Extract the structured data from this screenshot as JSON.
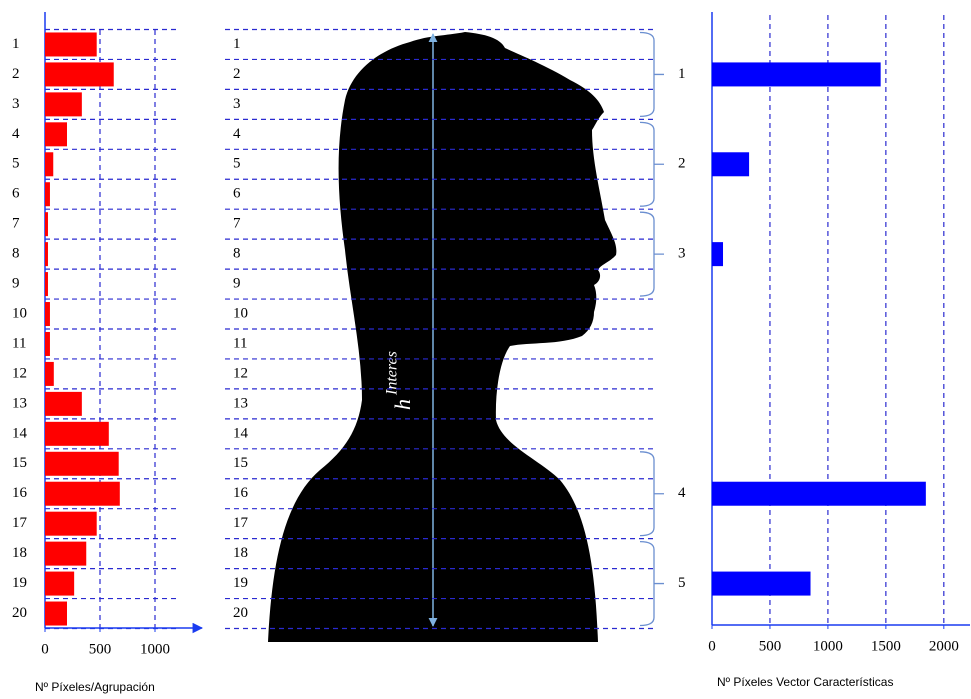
{
  "chart_data": [
    {
      "type": "bar",
      "orientation": "horizontal",
      "x_label": "Nº Píxeles/Agrupación",
      "categories": [
        "1",
        "2",
        "3",
        "4",
        "5",
        "6",
        "7",
        "8",
        "9",
        "10",
        "11",
        "12",
        "13",
        "14",
        "15",
        "16",
        "17",
        "18",
        "19",
        "20"
      ],
      "values": [
        470,
        625,
        335,
        200,
        75,
        45,
        27,
        27,
        27,
        45,
        45,
        80,
        335,
        580,
        670,
        680,
        470,
        375,
        265,
        200
      ],
      "color": "#ff0000",
      "xlim": [
        0,
        1400
      ],
      "xticks": [
        0,
        500,
        1000
      ],
      "grid": true
    },
    {
      "type": "bar",
      "orientation": "horizontal",
      "x_label": "Nº Píxeles Vector Características",
      "categories": [
        "1",
        "2",
        "3",
        "4",
        "5"
      ],
      "values": [
        1455,
        320,
        95,
        1845,
        850
      ],
      "color": "#0000ff",
      "xlim": [
        0,
        2200
      ],
      "xticks": [
        0,
        500,
        1000,
        1500,
        2000
      ],
      "grid": true
    }
  ],
  "diagram": {
    "row_labels": [
      "1",
      "2",
      "3",
      "4",
      "5",
      "6",
      "7",
      "8",
      "9",
      "10",
      "11",
      "12",
      "13",
      "14",
      "15",
      "16",
      "17",
      "18",
      "19",
      "20"
    ],
    "height_label": {
      "symbol": "h",
      "superscript": "Interes"
    }
  }
}
